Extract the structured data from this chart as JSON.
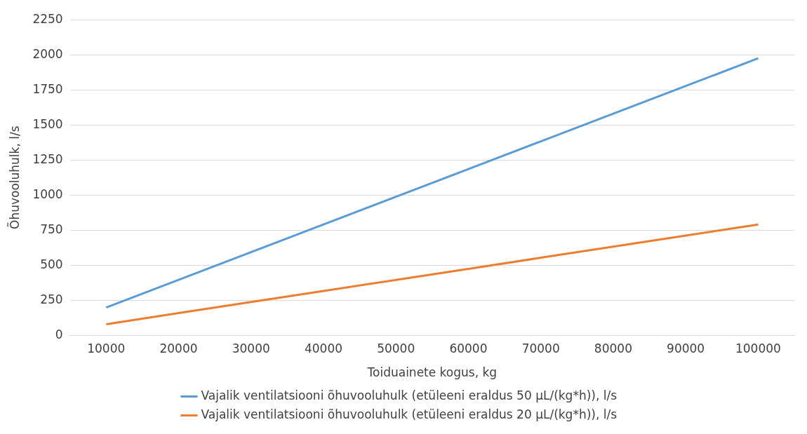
{
  "chart_data": {
    "type": "line",
    "xlabel": "Toiduainete kogus, kg",
    "ylabel": "Õhuvooluhulk, l/s",
    "categories": [
      "10000",
      "20000",
      "30000",
      "40000",
      "50000",
      "60000",
      "70000",
      "80000",
      "90000",
      "100000"
    ],
    "series": [
      {
        "name": "Vajalik ventilatsiooni õhuvooluhulk (etüleeni eraldus 50 µL/(kg*h)), l/s",
        "color": "#5b9bd5",
        "values": [
          198,
          395,
          593,
          790,
          988,
          1185,
          1383,
          1580,
          1778,
          1975
        ]
      },
      {
        "name": "Vajalik ventilatsiooni õhuvooluhulk (etüleeni eraldus 20 µL/(kg*h)), l/s",
        "color": "#ed7d31",
        "values": [
          79,
          158,
          237,
          316,
          395,
          474,
          553,
          632,
          711,
          790
        ]
      }
    ],
    "ylim": [
      0,
      2250
    ],
    "yticks": [
      0,
      250,
      500,
      750,
      1000,
      1250,
      1500,
      1750,
      2000,
      2250
    ],
    "grid": "y",
    "legend": "bottom",
    "marker": "none",
    "line_style": "solid"
  }
}
